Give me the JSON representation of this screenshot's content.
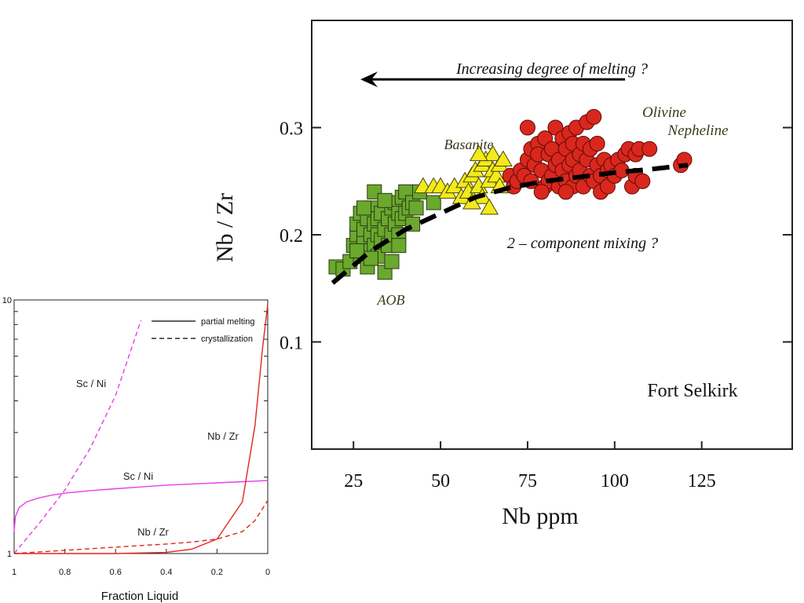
{
  "chart_data": [
    {
      "type": "scatter",
      "title": "",
      "xlabel": "Nb ppm",
      "ylabel": "Nb / Zr",
      "xlim": [
        13,
        151
      ],
      "ylim": [
        0,
        0.4
      ],
      "xticks": [
        "25",
        "50",
        "75",
        "100",
        "125"
      ],
      "xtick_values": [
        25,
        50,
        75,
        100,
        125
      ],
      "yticks": [
        "0.1",
        "0.2",
        "0.3"
      ],
      "ytick_values": [
        0.1,
        0.2,
        0.3
      ],
      "grid": false,
      "annotations": {
        "arrow_label": "Increasing degree of melting ?",
        "mixing_label": "2 – component mixing ?",
        "basanite": "Basanite",
        "olivine": "Olivine",
        "nepheline": "Nepheline",
        "aob": "AOB",
        "location": "Fort Selkirk"
      },
      "colors": {
        "aob": "#6aa82e",
        "basanite": "#f2ea1c",
        "nepheline": "#d9271e",
        "trend": "#000000"
      },
      "series": [
        {
          "name": "AOB",
          "marker": "square",
          "points": [
            [
              20,
              0.17
            ],
            [
              22,
              0.168
            ],
            [
              24,
              0.175
            ],
            [
              25,
              0.19
            ],
            [
              26,
              0.2
            ],
            [
              26,
              0.21
            ],
            [
              27,
              0.18
            ],
            [
              27,
              0.22
            ],
            [
              28,
              0.195
            ],
            [
              28,
              0.205
            ],
            [
              29,
              0.215
            ],
            [
              29,
              0.17
            ],
            [
              30,
              0.185
            ],
            [
              30,
              0.2
            ],
            [
              30,
              0.225
            ],
            [
              31,
              0.19
            ],
            [
              31,
              0.21
            ],
            [
              31,
              0.24
            ],
            [
              32,
              0.2
            ],
            [
              32,
              0.18
            ],
            [
              32,
              0.215
            ],
            [
              33,
              0.22
            ],
            [
              33,
              0.195
            ],
            [
              34,
              0.205
            ],
            [
              34,
              0.165
            ],
            [
              35,
              0.215
            ],
            [
              35,
              0.19
            ],
            [
              36,
              0.225
            ],
            [
              36,
              0.2
            ],
            [
              36,
              0.175
            ],
            [
              37,
              0.21
            ],
            [
              37,
              0.23
            ],
            [
              38,
              0.2
            ],
            [
              38,
              0.22
            ],
            [
              39,
              0.215
            ],
            [
              39,
              0.235
            ],
            [
              40,
              0.22
            ],
            [
              40,
              0.24
            ],
            [
              41,
              0.225
            ],
            [
              42,
              0.21
            ],
            [
              42,
              0.23
            ],
            [
              43,
              0.225
            ],
            [
              44,
              0.24
            ],
            [
              48,
              0.23
            ],
            [
              30,
              0.178
            ],
            [
              28,
              0.225
            ],
            [
              34,
              0.232
            ],
            [
              38,
              0.19
            ],
            [
              26,
              0.185
            ]
          ]
        },
        {
          "name": "Basanite",
          "marker": "triangle",
          "points": [
            [
              45,
              0.245
            ],
            [
              48,
              0.245
            ],
            [
              50,
              0.245
            ],
            [
              52,
              0.24
            ],
            [
              54,
              0.245
            ],
            [
              56,
              0.235
            ],
            [
              57,
              0.25
            ],
            [
              58,
              0.24
            ],
            [
              59,
              0.255
            ],
            [
              60,
              0.26
            ],
            [
              61,
              0.245
            ],
            [
              62,
              0.265
            ],
            [
              62,
              0.235
            ],
            [
              63,
              0.27
            ],
            [
              64,
              0.25
            ],
            [
              64,
              0.225
            ],
            [
              65,
              0.26
            ],
            [
              65,
              0.275
            ],
            [
              66,
              0.255
            ],
            [
              67,
              0.245
            ],
            [
              67,
              0.265
            ],
            [
              68,
              0.27
            ],
            [
              61,
              0.275
            ],
            [
              59,
              0.23
            ]
          ]
        },
        {
          "name": "Nepheline",
          "marker": "circle",
          "points": [
            [
              70,
              0.255
            ],
            [
              71,
              0.245
            ],
            [
              72,
              0.25
            ],
            [
              73,
              0.26
            ],
            [
              74,
              0.255
            ],
            [
              75,
              0.27
            ],
            [
              75,
              0.3
            ],
            [
              76,
              0.28
            ],
            [
              76,
              0.25
            ],
            [
              77,
              0.265
            ],
            [
              78,
              0.285
            ],
            [
              78,
              0.275
            ],
            [
              79,
              0.26
            ],
            [
              80,
              0.245
            ],
            [
              80,
              0.29
            ],
            [
              81,
              0.275
            ],
            [
              81,
              0.25
            ],
            [
              82,
              0.255
            ],
            [
              82,
              0.28
            ],
            [
              83,
              0.265
            ],
            [
              83,
              0.3
            ],
            [
              84,
              0.245
            ],
            [
              84,
              0.27
            ],
            [
              85,
              0.29
            ],
            [
              85,
              0.26
            ],
            [
              86,
              0.25
            ],
            [
              86,
              0.28
            ],
            [
              87,
              0.295
            ],
            [
              87,
              0.265
            ],
            [
              88,
              0.245
            ],
            [
              88,
              0.27
            ],
            [
              88,
              0.285
            ],
            [
              89,
              0.255
            ],
            [
              89,
              0.3
            ],
            [
              90,
              0.275
            ],
            [
              90,
              0.26
            ],
            [
              91,
              0.245
            ],
            [
              91,
              0.285
            ],
            [
              92,
              0.27
            ],
            [
              92,
              0.305
            ],
            [
              93,
              0.255
            ],
            [
              93,
              0.28
            ],
            [
              94,
              0.31
            ],
            [
              94,
              0.25
            ],
            [
              95,
              0.265
            ],
            [
              95,
              0.285
            ],
            [
              96,
              0.24
            ],
            [
              96,
              0.255
            ],
            [
              97,
              0.27
            ],
            [
              98,
              0.26
            ],
            [
              98,
              0.245
            ],
            [
              99,
              0.265
            ],
            [
              100,
              0.255
            ],
            [
              101,
              0.27
            ],
            [
              102,
              0.26
            ],
            [
              103,
              0.275
            ],
            [
              104,
              0.28
            ],
            [
              105,
              0.245
            ],
            [
              106,
              0.255
            ],
            [
              106,
              0.275
            ],
            [
              107,
              0.28
            ],
            [
              108,
              0.25
            ],
            [
              110,
              0.28
            ],
            [
              119,
              0.265
            ],
            [
              120,
              0.27
            ],
            [
              86,
              0.24
            ],
            [
              79,
              0.24
            ]
          ]
        }
      ],
      "trend_line": {
        "x": [
          19,
          30,
          40,
          50,
          60,
          70,
          80,
          90,
          100,
          110,
          121
        ],
        "y": [
          0.155,
          0.185,
          0.205,
          0.22,
          0.235,
          0.244,
          0.25,
          0.254,
          0.258,
          0.261,
          0.265
        ]
      },
      "arrow": {
        "from": [
          103,
          0.345
        ],
        "to": [
          27,
          0.345
        ]
      }
    },
    {
      "type": "line",
      "title": "",
      "xlabel": "Fraction Liquid",
      "ylabel": "",
      "xlim": [
        1,
        0
      ],
      "ylim": [
        1,
        10
      ],
      "yscale": "log",
      "xticks": [
        "1",
        "0.8",
        "0.6",
        "0.4",
        "0.2",
        "0"
      ],
      "xtick_values": [
        1,
        0.8,
        0.6,
        0.4,
        0.2,
        0
      ],
      "yticks": [
        "1",
        "10"
      ],
      "ytick_values": [
        1,
        10
      ],
      "grid": false,
      "legend": {
        "placement": "top-right",
        "entries": [
          {
            "label": "partial melting",
            "style": "solid"
          },
          {
            "label": "crystallization",
            "style": "dashed"
          }
        ]
      },
      "annotations": {
        "sc_ni_dashed": "Sc / Ni",
        "nb_zr_solid": "Nb / Zr",
        "sc_ni_solid": "Sc / Ni",
        "nb_zr_dashed": "Nb / Zr"
      },
      "colors": {
        "magenta": "#e83ee8",
        "red": "#e0261e"
      },
      "series": [
        {
          "label_ref": "sc_ni_solid",
          "style": "solid",
          "color": "magenta",
          "x": [
            1,
            0.995,
            0.98,
            0.95,
            0.9,
            0.85,
            0.8,
            0.7,
            0.6,
            0.5,
            0.4,
            0.3,
            0.2,
            0.1,
            0.05,
            0
          ],
          "y": [
            1.22,
            1.4,
            1.52,
            1.6,
            1.66,
            1.7,
            1.73,
            1.77,
            1.8,
            1.83,
            1.86,
            1.88,
            1.9,
            1.92,
            1.93,
            1.94
          ]
        },
        {
          "label_ref": "sc_ni_dashed",
          "style": "dashed",
          "color": "magenta",
          "x": [
            1,
            0.9,
            0.8,
            0.7,
            0.6,
            0.5
          ],
          "y": [
            1.0,
            1.32,
            1.78,
            2.6,
            4.2,
            8.3
          ]
        },
        {
          "label_ref": "nb_zr_solid",
          "style": "solid",
          "color": "red",
          "x": [
            1,
            0.8,
            0.6,
            0.4,
            0.3,
            0.2,
            0.1,
            0.05,
            0.02,
            0
          ],
          "y": [
            1.0,
            1.0,
            1.0,
            1.01,
            1.04,
            1.14,
            1.6,
            3.2,
            6.5,
            9.6
          ]
        },
        {
          "label_ref": "nb_zr_dashed",
          "style": "dashed",
          "color": "red",
          "x": [
            1,
            0.8,
            0.6,
            0.4,
            0.3,
            0.2,
            0.1,
            0.05,
            0
          ],
          "y": [
            1.0,
            1.03,
            1.06,
            1.09,
            1.11,
            1.14,
            1.22,
            1.35,
            1.62
          ]
        }
      ]
    }
  ]
}
